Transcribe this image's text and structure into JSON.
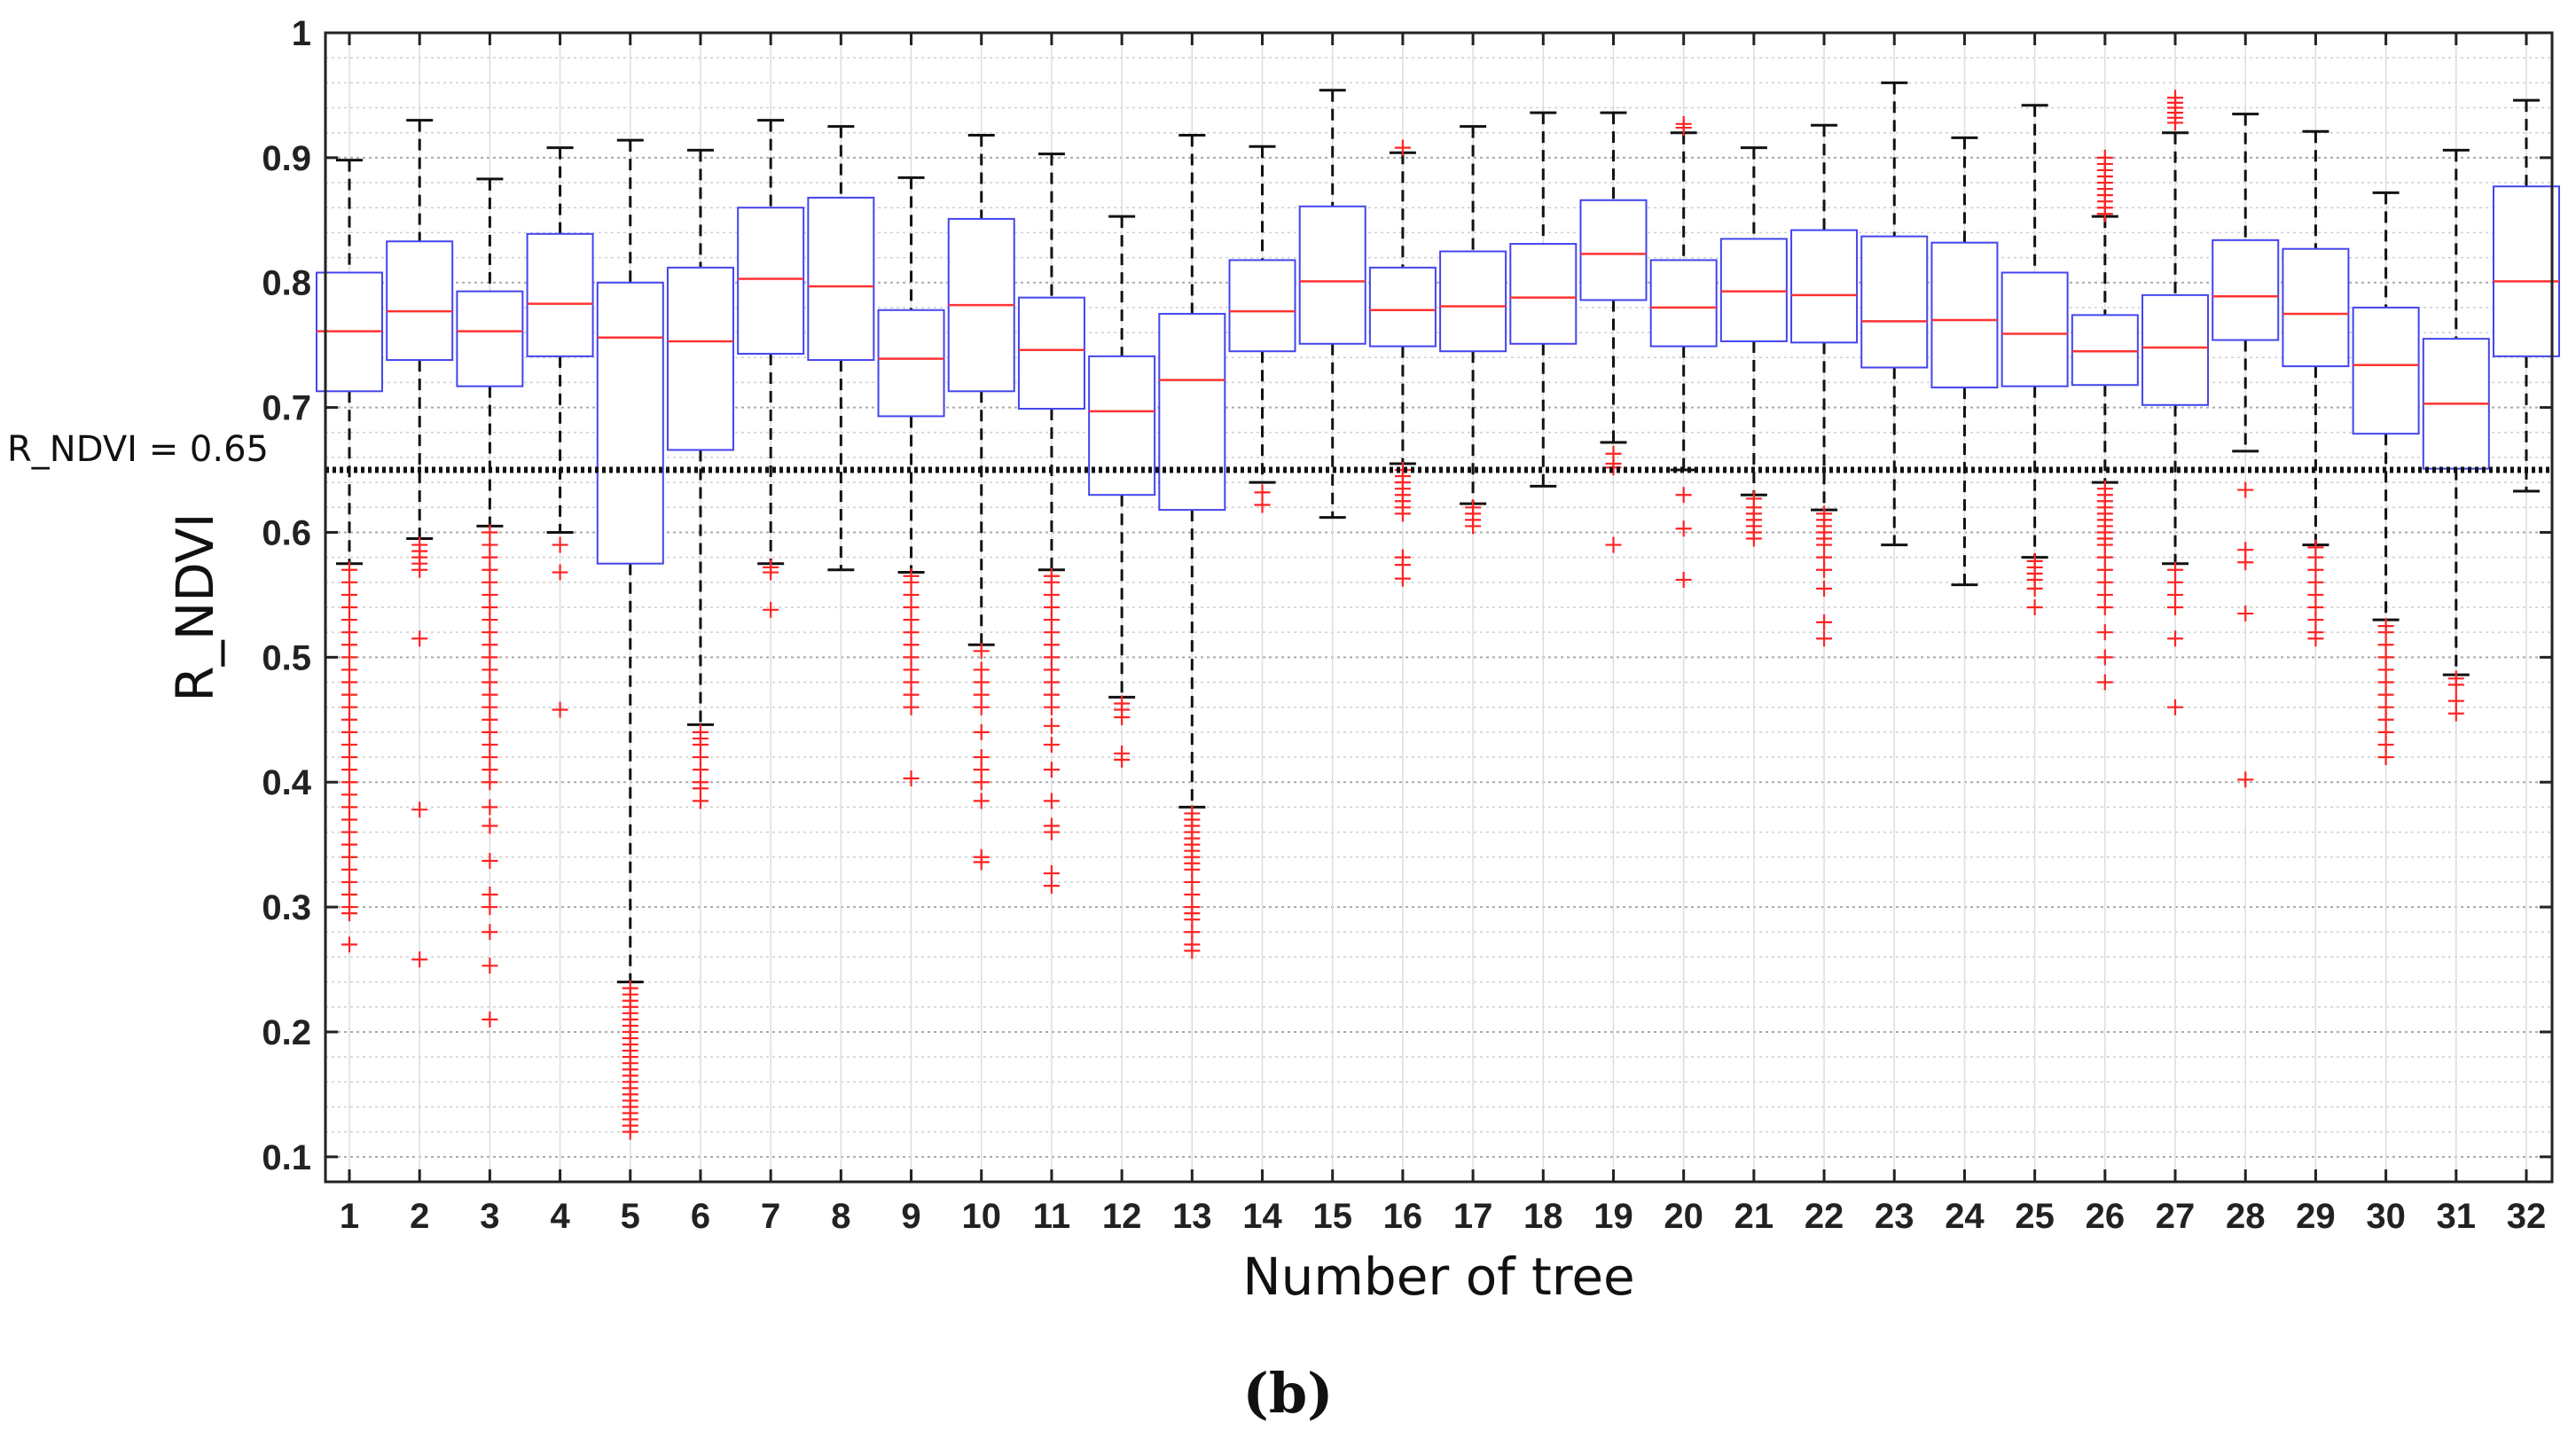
{
  "caption": "(b)",
  "chart_data": {
    "type": "box",
    "xlabel": "Number of tree",
    "ylabel": "R_NDVI",
    "ylim": [
      0.08,
      1.0
    ],
    "yticks": [
      0.1,
      0.2,
      0.3,
      0.4,
      0.5,
      0.6,
      0.7,
      0.8,
      0.9,
      1
    ],
    "ytick_labels": [
      "0.1",
      "0.2",
      "0.3",
      "0.4",
      "0.5",
      "0.6",
      "0.7",
      "0.8",
      "0.9",
      "1"
    ],
    "grid": true,
    "reference_line": {
      "value": 0.65,
      "label": "R_NDVI = 0.65",
      "style": "dotted"
    },
    "colors": {
      "box": "#4444ee",
      "median": "#ff3333",
      "whisker": "#111111",
      "outlier": "#ff2222",
      "reference": "#111111",
      "grid": "#bbbbbb"
    },
    "categories": [
      "1",
      "2",
      "3",
      "4",
      "5",
      "6",
      "7",
      "8",
      "9",
      "10",
      "11",
      "12",
      "13",
      "14",
      "15",
      "16",
      "17",
      "18",
      "19",
      "20",
      "21",
      "22",
      "23",
      "24",
      "25",
      "26",
      "27",
      "28",
      "29",
      "30",
      "31",
      "32"
    ],
    "boxes": [
      {
        "tree": "1",
        "lower_whisker": 0.575,
        "q1": 0.713,
        "median": 0.761,
        "q3": 0.808,
        "upper_whisker": 0.898,
        "outliers": [
          0.57,
          0.56,
          0.55,
          0.54,
          0.53,
          0.52,
          0.51,
          0.5,
          0.49,
          0.48,
          0.47,
          0.46,
          0.45,
          0.44,
          0.43,
          0.42,
          0.41,
          0.4,
          0.39,
          0.38,
          0.37,
          0.36,
          0.35,
          0.34,
          0.33,
          0.32,
          0.31,
          0.3,
          0.295,
          0.27
        ]
      },
      {
        "tree": "2",
        "lower_whisker": 0.595,
        "q1": 0.738,
        "median": 0.777,
        "q3": 0.833,
        "upper_whisker": 0.93,
        "outliers": [
          0.59,
          0.585,
          0.58,
          0.575,
          0.57,
          0.515,
          0.378,
          0.258
        ]
      },
      {
        "tree": "3",
        "lower_whisker": 0.605,
        "q1": 0.717,
        "median": 0.761,
        "q3": 0.793,
        "upper_whisker": 0.883,
        "outliers": [
          0.6,
          0.59,
          0.58,
          0.57,
          0.56,
          0.55,
          0.54,
          0.53,
          0.52,
          0.51,
          0.5,
          0.49,
          0.48,
          0.47,
          0.46,
          0.45,
          0.44,
          0.43,
          0.42,
          0.41,
          0.4,
          0.38,
          0.365,
          0.337,
          0.31,
          0.3,
          0.28,
          0.253,
          0.21
        ]
      },
      {
        "tree": "4",
        "lower_whisker": 0.6,
        "q1": 0.741,
        "median": 0.783,
        "q3": 0.839,
        "upper_whisker": 0.908,
        "outliers": [
          0.59,
          0.568,
          0.458
        ]
      },
      {
        "tree": "5",
        "lower_whisker": 0.24,
        "q1": 0.575,
        "median": 0.756,
        "q3": 0.8,
        "upper_whisker": 0.914,
        "outliers": [
          0.235,
          0.23,
          0.225,
          0.22,
          0.215,
          0.21,
          0.205,
          0.2,
          0.195,
          0.19,
          0.185,
          0.18,
          0.175,
          0.17,
          0.165,
          0.16,
          0.155,
          0.15,
          0.145,
          0.14,
          0.135,
          0.13,
          0.125,
          0.12
        ]
      },
      {
        "tree": "6",
        "lower_whisker": 0.446,
        "q1": 0.666,
        "median": 0.753,
        "q3": 0.812,
        "upper_whisker": 0.906,
        "outliers": [
          0.44,
          0.435,
          0.43,
          0.42,
          0.41,
          0.4,
          0.395,
          0.385
        ]
      },
      {
        "tree": "7",
        "lower_whisker": 0.575,
        "q1": 0.743,
        "median": 0.803,
        "q3": 0.86,
        "upper_whisker": 0.93,
        "outliers": [
          0.572,
          0.568,
          0.538
        ]
      },
      {
        "tree": "8",
        "lower_whisker": 0.57,
        "q1": 0.738,
        "median": 0.797,
        "q3": 0.868,
        "upper_whisker": 0.925,
        "outliers": []
      },
      {
        "tree": "9",
        "lower_whisker": 0.568,
        "q1": 0.693,
        "median": 0.739,
        "q3": 0.778,
        "upper_whisker": 0.884,
        "outliers": [
          0.565,
          0.56,
          0.55,
          0.54,
          0.53,
          0.52,
          0.51,
          0.5,
          0.49,
          0.48,
          0.47,
          0.46,
          0.403
        ]
      },
      {
        "tree": "10",
        "lower_whisker": 0.51,
        "q1": 0.713,
        "median": 0.782,
        "q3": 0.851,
        "upper_whisker": 0.918,
        "outliers": [
          0.505,
          0.49,
          0.48,
          0.47,
          0.46,
          0.44,
          0.42,
          0.41,
          0.4,
          0.385,
          0.34,
          0.336
        ]
      },
      {
        "tree": "11",
        "lower_whisker": 0.57,
        "q1": 0.699,
        "median": 0.746,
        "q3": 0.788,
        "upper_whisker": 0.903,
        "outliers": [
          0.565,
          0.56,
          0.55,
          0.54,
          0.53,
          0.52,
          0.51,
          0.5,
          0.49,
          0.48,
          0.47,
          0.46,
          0.445,
          0.43,
          0.41,
          0.385,
          0.365,
          0.36,
          0.327,
          0.317
        ]
      },
      {
        "tree": "12",
        "lower_whisker": 0.468,
        "q1": 0.63,
        "median": 0.697,
        "q3": 0.741,
        "upper_whisker": 0.853,
        "outliers": [
          0.463,
          0.458,
          0.452,
          0.423,
          0.418
        ]
      },
      {
        "tree": "13",
        "lower_whisker": 0.38,
        "q1": 0.618,
        "median": 0.722,
        "q3": 0.775,
        "upper_whisker": 0.918,
        "outliers": [
          0.375,
          0.37,
          0.365,
          0.36,
          0.355,
          0.35,
          0.345,
          0.34,
          0.335,
          0.33,
          0.32,
          0.31,
          0.3,
          0.295,
          0.29,
          0.28,
          0.27,
          0.265
        ]
      },
      {
        "tree": "14",
        "lower_whisker": 0.64,
        "q1": 0.745,
        "median": 0.777,
        "q3": 0.818,
        "upper_whisker": 0.909,
        "outliers": [
          0.632,
          0.622
        ]
      },
      {
        "tree": "15",
        "lower_whisker": 0.612,
        "q1": 0.751,
        "median": 0.801,
        "q3": 0.861,
        "upper_whisker": 0.954,
        "outliers": []
      },
      {
        "tree": "16",
        "lower_whisker": 0.655,
        "q1": 0.749,
        "median": 0.778,
        "q3": 0.812,
        "upper_whisker": 0.904,
        "outliers": [
          0.908,
          0.65,
          0.645,
          0.64,
          0.635,
          0.63,
          0.625,
          0.62,
          0.615,
          0.58,
          0.574,
          0.563
        ]
      },
      {
        "tree": "17",
        "lower_whisker": 0.623,
        "q1": 0.745,
        "median": 0.781,
        "q3": 0.825,
        "upper_whisker": 0.925,
        "outliers": [
          0.62,
          0.615,
          0.61,
          0.605
        ]
      },
      {
        "tree": "18",
        "lower_whisker": 0.637,
        "q1": 0.751,
        "median": 0.788,
        "q3": 0.831,
        "upper_whisker": 0.936,
        "outliers": []
      },
      {
        "tree": "19",
        "lower_whisker": 0.672,
        "q1": 0.786,
        "median": 0.823,
        "q3": 0.866,
        "upper_whisker": 0.936,
        "outliers": [
          0.663,
          0.655,
          0.652,
          0.59
        ]
      },
      {
        "tree": "20",
        "lower_whisker": 0.65,
        "q1": 0.749,
        "median": 0.78,
        "q3": 0.818,
        "upper_whisker": 0.92,
        "outliers": [
          0.927,
          0.924,
          0.63,
          0.603,
          0.562
        ]
      },
      {
        "tree": "21",
        "lower_whisker": 0.63,
        "q1": 0.753,
        "median": 0.793,
        "q3": 0.835,
        "upper_whisker": 0.908,
        "outliers": [
          0.627,
          0.62,
          0.615,
          0.61,
          0.605,
          0.6,
          0.595
        ]
      },
      {
        "tree": "22",
        "lower_whisker": 0.618,
        "q1": 0.752,
        "median": 0.79,
        "q3": 0.842,
        "upper_whisker": 0.926,
        "outliers": [
          0.615,
          0.61,
          0.605,
          0.6,
          0.595,
          0.59,
          0.58,
          0.57,
          0.555,
          0.528,
          0.515
        ]
      },
      {
        "tree": "23",
        "lower_whisker": 0.59,
        "q1": 0.732,
        "median": 0.769,
        "q3": 0.837,
        "upper_whisker": 0.96,
        "outliers": []
      },
      {
        "tree": "24",
        "lower_whisker": 0.558,
        "q1": 0.716,
        "median": 0.77,
        "q3": 0.832,
        "upper_whisker": 0.916,
        "outliers": []
      },
      {
        "tree": "25",
        "lower_whisker": 0.58,
        "q1": 0.717,
        "median": 0.759,
        "q3": 0.808,
        "upper_whisker": 0.942,
        "outliers": [
          0.577,
          0.572,
          0.567,
          0.562,
          0.555,
          0.54
        ]
      },
      {
        "tree": "26",
        "lower_whisker": 0.64,
        "q1": 0.718,
        "median": 0.745,
        "q3": 0.774,
        "upper_whisker": 0.853,
        "outliers": [
          0.9,
          0.895,
          0.89,
          0.885,
          0.88,
          0.875,
          0.87,
          0.865,
          0.86,
          0.855,
          0.635,
          0.63,
          0.625,
          0.62,
          0.615,
          0.61,
          0.605,
          0.6,
          0.595,
          0.59,
          0.58,
          0.57,
          0.56,
          0.55,
          0.54,
          0.52,
          0.5,
          0.48
        ]
      },
      {
        "tree": "27",
        "lower_whisker": 0.575,
        "q1": 0.702,
        "median": 0.748,
        "q3": 0.79,
        "upper_whisker": 0.92,
        "outliers": [
          0.948,
          0.944,
          0.94,
          0.936,
          0.932,
          0.928,
          0.57,
          0.56,
          0.55,
          0.54,
          0.515,
          0.46
        ]
      },
      {
        "tree": "28",
        "lower_whisker": 0.665,
        "q1": 0.754,
        "median": 0.789,
        "q3": 0.834,
        "upper_whisker": 0.935,
        "outliers": [
          0.634,
          0.586,
          0.576,
          0.535,
          0.402
        ]
      },
      {
        "tree": "29",
        "lower_whisker": 0.59,
        "q1": 0.733,
        "median": 0.775,
        "q3": 0.827,
        "upper_whisker": 0.921,
        "outliers": [
          0.588,
          0.58,
          0.57,
          0.56,
          0.55,
          0.54,
          0.53,
          0.52,
          0.515
        ]
      },
      {
        "tree": "30",
        "lower_whisker": 0.53,
        "q1": 0.679,
        "median": 0.734,
        "q3": 0.78,
        "upper_whisker": 0.872,
        "outliers": [
          0.525,
          0.52,
          0.51,
          0.5,
          0.49,
          0.48,
          0.47,
          0.46,
          0.45,
          0.44,
          0.43,
          0.42
        ]
      },
      {
        "tree": "31",
        "lower_whisker": 0.486,
        "q1": 0.651,
        "median": 0.703,
        "q3": 0.755,
        "upper_whisker": 0.906,
        "outliers": [
          0.483,
          0.478,
          0.465,
          0.455
        ]
      },
      {
        "tree": "32",
        "lower_whisker": 0.633,
        "q1": 0.741,
        "median": 0.801,
        "q3": 0.877,
        "upper_whisker": 0.946,
        "outliers": []
      }
    ]
  }
}
